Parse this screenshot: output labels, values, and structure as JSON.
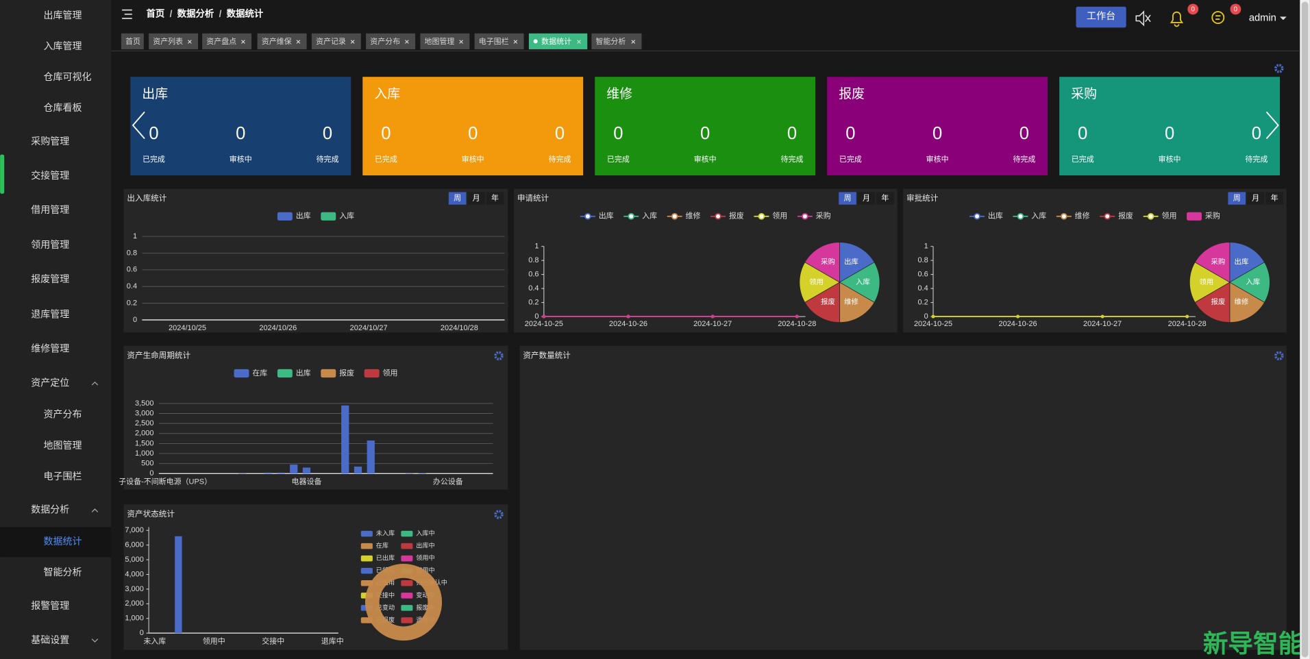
{
  "sidebar": {
    "items": [
      "出库管理",
      "入库管理",
      "仓库可视化",
      "仓库看板",
      "采购管理",
      "交接管理",
      "借用管理",
      "领用管理",
      "报废管理",
      "退库管理",
      "维修管理",
      "资产定位",
      "资产分布",
      "地图管理",
      "电子围栏",
      "数据分析",
      "数据统计",
      "智能分析",
      "报警管理",
      "基础设置"
    ]
  },
  "header": {
    "breadcrumb": [
      "首页",
      "数据分析",
      "数据统计"
    ],
    "separator": "/",
    "workbench": "工作台",
    "notification_count": 0,
    "message_count": 0,
    "user": "admin"
  },
  "tabs": [
    "首页",
    "资产列表",
    "资产盘点",
    "资产维保",
    "资产记录",
    "资产分布",
    "地图管理",
    "电子围栏",
    "数据统计",
    "智能分析"
  ],
  "cards": [
    {
      "title": "出库",
      "color": "#173f6f",
      "stats": [
        {
          "value": 0,
          "label": "已完成"
        },
        {
          "value": 0,
          "label": "审核中"
        },
        {
          "value": 0,
          "label": "待完成"
        }
      ]
    },
    {
      "title": "入库",
      "color": "#f39a0c",
      "stats": [
        {
          "value": 0,
          "label": "已完成"
        },
        {
          "value": 0,
          "label": "审核中"
        },
        {
          "value": 0,
          "label": "待完成"
        }
      ]
    },
    {
      "title": "维修",
      "color": "#1a8f10",
      "stats": [
        {
          "value": 0,
          "label": "已完成"
        },
        {
          "value": 0,
          "label": "审核中"
        },
        {
          "value": 0,
          "label": "待完成"
        }
      ]
    },
    {
      "title": "报废",
      "color": "#8a0079",
      "stats": [
        {
          "value": 0,
          "label": "已完成"
        },
        {
          "value": 0,
          "label": "审核中"
        },
        {
          "value": 0,
          "label": "待完成"
        }
      ]
    },
    {
      "title": "采购",
      "color": "#15957a",
      "stats": [
        {
          "value": 0,
          "label": "已完成"
        },
        {
          "value": 0,
          "label": "审核中"
        },
        {
          "value": 0,
          "label": "待完成"
        }
      ]
    }
  ],
  "chart_data": [
    {
      "type": "bar",
      "title": "出入库统计",
      "period_buttons": [
        "周",
        "月",
        "年"
      ],
      "categories": [
        "2024/10/25",
        "2024/10/26",
        "2024/10/27",
        "2024/10/28"
      ],
      "series": [
        {
          "name": "出库",
          "color": "#4a6bc8",
          "values": [
            0,
            0,
            0,
            0
          ]
        },
        {
          "name": "入库",
          "color": "#3dba84",
          "values": [
            0,
            0,
            0,
            0
          ]
        }
      ],
      "ylim": [
        0,
        1
      ],
      "yticks": [
        0,
        0.2,
        0.4,
        0.6,
        0.8,
        1
      ],
      "grid": true
    },
    {
      "type": "line",
      "title": "申请统计",
      "period_buttons": [
        "周",
        "月",
        "年"
      ],
      "categories": [
        "2024-10-25",
        "2024-10-26",
        "2024-10-27",
        "2024-10-28"
      ],
      "series": [
        {
          "name": "出库",
          "color": "#4a6bc8",
          "values": [
            0,
            0,
            0,
            0
          ]
        },
        {
          "name": "入库",
          "color": "#3dba84",
          "values": [
            0,
            0,
            0,
            0
          ]
        },
        {
          "name": "维修",
          "color": "#c88a4a",
          "values": [
            0,
            0,
            0,
            0
          ]
        },
        {
          "name": "报废",
          "color": "#c0393f",
          "values": [
            0,
            0,
            0,
            0
          ]
        },
        {
          "name": "领用",
          "color": "#d4d12a",
          "values": [
            0,
            0,
            0,
            0
          ]
        },
        {
          "name": "采购",
          "color": "#d6379a",
          "values": [
            0,
            0,
            0,
            0
          ]
        }
      ],
      "ylim": [
        0,
        1
      ],
      "yticks": [
        0,
        0.2,
        0.4,
        0.6,
        0.8,
        1
      ],
      "grid": false,
      "pie_values": [
        1,
        1,
        1,
        1,
        1,
        1
      ]
    },
    {
      "type": "line",
      "title": "审批统计",
      "period_buttons": [
        "周",
        "月",
        "年"
      ],
      "categories": [
        "2024-10-25",
        "2024-10-26",
        "2024-10-27",
        "2024-10-28"
      ],
      "series": [
        {
          "name": "出库",
          "color": "#4a6bc8",
          "values": [
            0,
            0,
            0,
            0
          ]
        },
        {
          "name": "入库",
          "color": "#3dba84",
          "values": [
            0,
            0,
            0,
            0
          ]
        },
        {
          "name": "维修",
          "color": "#c88a4a",
          "values": [
            0,
            0,
            0,
            0
          ]
        },
        {
          "name": "报废",
          "color": "#c0393f",
          "values": [
            0,
            0,
            0,
            0
          ]
        },
        {
          "name": "领用",
          "color": "#d4d12a",
          "values": [
            0,
            0,
            0,
            0
          ]
        },
        {
          "name": "采购",
          "color": "#d6379a",
          "values": [
            0,
            0,
            0,
            0
          ],
          "type": "bar"
        }
      ],
      "ylim": [
        0,
        1
      ],
      "yticks": [
        0,
        0.2,
        0.4,
        0.6,
        0.8,
        1
      ],
      "grid": false,
      "pie_values": [
        1,
        1,
        1,
        1,
        1,
        1
      ]
    },
    {
      "type": "bar",
      "title": "资产生命周期统计",
      "stacked": true,
      "categories": [
        "子设备-不间断电源（UPS）",
        null,
        null,
        null,
        null,
        null,
        null,
        null,
        null,
        null,
        null,
        "电器设备",
        null,
        null,
        null,
        null,
        null,
        null,
        null,
        null,
        null,
        null,
        "办公设备",
        null,
        null,
        null
      ],
      "series": [
        {
          "name": "在库",
          "color": "#4a6bc8",
          "values": [
            0,
            0,
            0,
            0,
            0,
            0,
            15,
            0,
            50,
            50,
            450,
            300,
            0,
            0,
            3400,
            350,
            1650,
            0,
            0,
            15,
            30,
            0,
            0,
            0,
            0,
            0
          ]
        },
        {
          "name": "出库",
          "color": "#3dba84",
          "values": [
            0,
            0,
            0,
            0,
            0,
            0,
            0,
            0,
            0,
            0,
            0,
            0,
            0,
            0,
            0,
            0,
            0,
            0,
            0,
            0,
            0,
            0,
            0,
            0,
            0,
            0
          ]
        },
        {
          "name": "报废",
          "color": "#c88a4a",
          "values": [
            0,
            0,
            0,
            0,
            0,
            0,
            0,
            0,
            0,
            0,
            0,
            0,
            0,
            0,
            0,
            0,
            0,
            0,
            0,
            0,
            0,
            0,
            0,
            0,
            0,
            0
          ]
        },
        {
          "name": "领用",
          "color": "#c0393f",
          "values": [
            0,
            0,
            0,
            0,
            0,
            0,
            0,
            0,
            0,
            0,
            0,
            0,
            0,
            0,
            0,
            0,
            0,
            0,
            0,
            0,
            0,
            0,
            0,
            0,
            0,
            0
          ]
        }
      ],
      "ylim": [
        0,
        3500
      ],
      "yticks": [
        0,
        500,
        {
          "value": 1000,
          "label": "1,000"
        },
        {
          "value": 1500,
          "label": "1,500"
        },
        {
          "value": 2000,
          "label": "2,000"
        },
        {
          "value": 2500,
          "label": "2,500"
        },
        {
          "value": 3000,
          "label": "3,000"
        },
        {
          "value": 3500,
          "label": "3,500"
        }
      ],
      "grid": true
    },
    {
      "type": "bar",
      "title": "资产状态统计",
      "categories": [
        "未入库",
        null,
        null,
        null,
        null,
        "领用中",
        null,
        null,
        null,
        null,
        "交接中",
        null,
        null,
        null,
        null,
        "退库中"
      ],
      "values": [
        0,
        0,
        6600,
        0,
        0,
        0,
        0,
        0,
        0,
        0,
        0,
        0,
        0,
        0,
        0,
        0
      ],
      "color": "#4a6bc8",
      "ylim": [
        0,
        7000
      ],
      "yticks": [
        0,
        {
          "value": 1000,
          "label": "1,000"
        },
        {
          "value": 2000,
          "label": "2,000"
        },
        {
          "value": 3000,
          "label": "3,000"
        },
        {
          "value": 4000,
          "label": "4,000"
        },
        {
          "value": 5000,
          "label": "5,000"
        },
        {
          "value": 6000,
          "label": "6,000"
        },
        {
          "value": 7000,
          "label": "7,000"
        }
      ],
      "grid": false,
      "legend": [
        "未入库",
        "入库中",
        "在库",
        "出库中",
        "已出库",
        "领用中",
        "已领用",
        "借用中",
        "已借用",
        "归还确认中",
        "交接中",
        "变动中",
        "已变动",
        "报废中",
        "已报废",
        "退库中"
      ],
      "pie_colors": [
        "#4a6bc8",
        "#3dba84",
        "#c88a4a",
        "#c0393f",
        "#d4d12a",
        "#d6379a",
        "#4a6bc8",
        "#3dba84",
        "#c88a4a",
        "#c0393f",
        "#d4d12a",
        "#d6379a",
        "#4a6bc8",
        "#3dba84",
        "#c88a4a",
        "#c0393f"
      ]
    }
  ],
  "panel": {
    "title": "资产数量统计"
  },
  "watermark": "新导智能"
}
